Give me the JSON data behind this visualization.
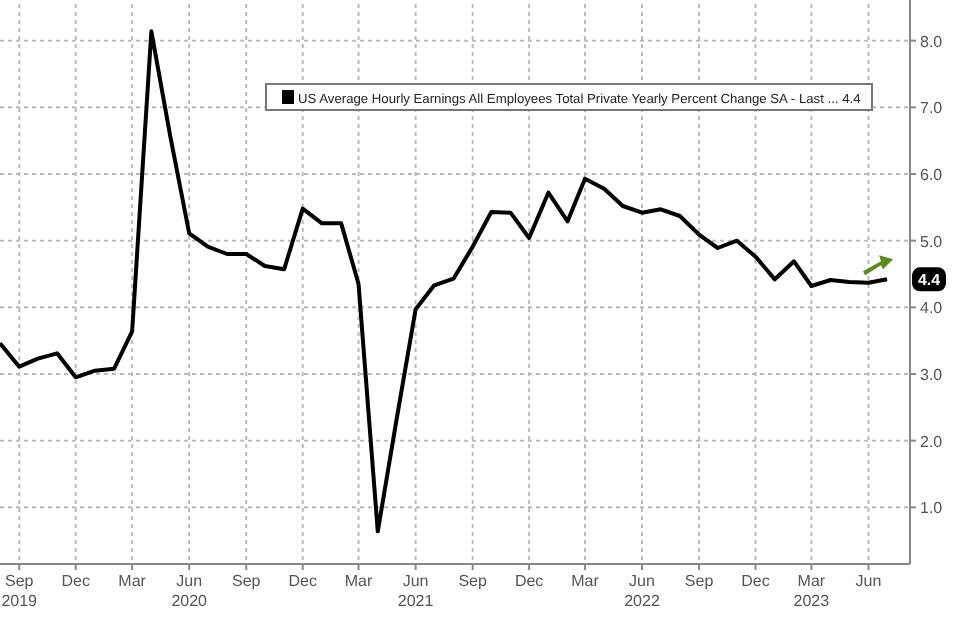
{
  "chart_data": {
    "type": "line",
    "x": [
      "2019-08",
      "2019-09",
      "2019-10",
      "2019-11",
      "2019-12",
      "2020-01",
      "2020-02",
      "2020-03",
      "2020-04",
      "2020-05",
      "2020-06",
      "2020-07",
      "2020-08",
      "2020-09",
      "2020-10",
      "2020-11",
      "2020-12",
      "2021-01",
      "2021-02",
      "2021-03",
      "2021-04",
      "2021-05",
      "2021-06",
      "2021-07",
      "2021-08",
      "2021-09",
      "2021-10",
      "2021-11",
      "2021-12",
      "2022-01",
      "2022-02",
      "2022-03",
      "2022-04",
      "2022-05",
      "2022-06",
      "2022-07",
      "2022-08",
      "2022-09",
      "2022-10",
      "2022-11",
      "2022-12",
      "2023-01",
      "2023-02",
      "2023-03",
      "2023-04",
      "2023-05",
      "2023-06",
      "2023-07"
    ],
    "series": [
      {
        "name": "US Average Hourly Earnings All Employees Total Private Yearly Percent Change SA - Last ... 4.4",
        "color": "#000000",
        "values": [
          3.46,
          3.11,
          3.23,
          3.31,
          2.95,
          3.05,
          3.08,
          3.64,
          8.14,
          6.59,
          5.11,
          4.91,
          4.8,
          4.8,
          4.62,
          4.57,
          5.48,
          5.26,
          5.26,
          4.35,
          0.64,
          2.3,
          3.97,
          4.33,
          4.43,
          4.91,
          5.43,
          5.42,
          5.04,
          5.72,
          5.29,
          5.93,
          5.78,
          5.52,
          5.42,
          5.47,
          5.37,
          5.09,
          4.89,
          5.0,
          4.76,
          4.42,
          4.69,
          4.32,
          4.41,
          4.38,
          4.37,
          4.42
        ]
      }
    ],
    "xlim": [
      "2019-08",
      "2023-08-07"
    ],
    "xticks": [
      {
        "value": "2019-09",
        "label": "Sep\n2019"
      },
      {
        "value": "2019-12",
        "label": "Dec"
      },
      {
        "value": "2020-03",
        "label": "Mar"
      },
      {
        "value": "2020-06",
        "label": "Jun\n2020"
      },
      {
        "value": "2020-09",
        "label": "Sep"
      },
      {
        "value": "2020-12",
        "label": "Dec"
      },
      {
        "value": "2021-03",
        "label": "Mar"
      },
      {
        "value": "2021-06",
        "label": "Jun\n2021"
      },
      {
        "value": "2021-09",
        "label": "Sep"
      },
      {
        "value": "2021-12",
        "label": "Dec"
      },
      {
        "value": "2022-03",
        "label": "Mar"
      },
      {
        "value": "2022-06",
        "label": "Jun\n2022"
      },
      {
        "value": "2022-09",
        "label": "Sep"
      },
      {
        "value": "2022-12",
        "label": "Dec"
      },
      {
        "value": "2023-03",
        "label": "Mar\n2023"
      },
      {
        "value": "2023-06",
        "label": "Jun"
      }
    ],
    "ylim": [
      0.15,
      8.55
    ],
    "yticks": [
      {
        "value": 1,
        "label": "1.0"
      },
      {
        "value": 2,
        "label": "2.0"
      },
      {
        "value": 3,
        "label": "3.0"
      },
      {
        "value": 4,
        "label": "4.0"
      },
      {
        "value": 5,
        "label": "5.0"
      },
      {
        "value": 6,
        "label": "6.0"
      },
      {
        "value": 7,
        "label": "7.0"
      },
      {
        "value": 8,
        "label": "8.0"
      }
    ],
    "annotations": [
      {
        "text": "4.4",
        "x": "2023-07",
        "y": 4.42
      }
    ],
    "grid": true,
    "legend": "top",
    "line_style": "solid",
    "marker": "none"
  }
}
